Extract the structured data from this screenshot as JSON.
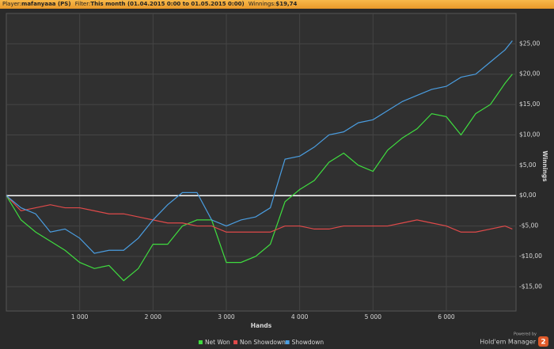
{
  "header": {
    "player_label": "Player:",
    "player": "mafanyaaa (PS)",
    "filter_label": "Filter:",
    "filter": "This month (01.04.2015 0:00 to 01.05.2015 0:00)",
    "winnings_label": "Winnings:",
    "winnings": "$19,74"
  },
  "chart_data": {
    "type": "line",
    "xlabel": "Hands",
    "ylabel": "Winnings",
    "x": [
      0,
      200,
      400,
      600,
      800,
      1000,
      1200,
      1400,
      1600,
      1800,
      2000,
      2200,
      2400,
      2600,
      2800,
      3000,
      3200,
      3400,
      3600,
      3800,
      4000,
      4200,
      4400,
      4600,
      4800,
      5000,
      5200,
      5400,
      5600,
      5800,
      6000,
      6200,
      6400,
      6600,
      6800,
      6900
    ],
    "series": [
      {
        "name": "Net Won",
        "color": "#3fdc3f",
        "values": [
          0,
          -4,
          -6,
          -7.5,
          -9,
          -11,
          -12,
          -11.5,
          -14,
          -12,
          -8,
          -8,
          -5,
          -4,
          -4,
          -11,
          -11,
          -10,
          -8,
          -1,
          1,
          2.5,
          5.5,
          7,
          5,
          4,
          7.5,
          9.5,
          11,
          13.5,
          13,
          10,
          13.5,
          15,
          18.5,
          20
        ]
      },
      {
        "name": "Non Showdown",
        "color": "#e04a4a",
        "values": [
          0,
          -2.5,
          -2,
          -1.5,
          -2,
          -2,
          -2.5,
          -3,
          -3,
          -3.5,
          -4,
          -4.5,
          -4.5,
          -5,
          -5,
          -6,
          -6,
          -6,
          -6,
          -5,
          -5,
          -5.5,
          -5.5,
          -5,
          -5,
          -5,
          -5,
          -4.5,
          -4,
          -4.5,
          -5,
          -6,
          -6,
          -5.5,
          -5,
          -5.5
        ]
      },
      {
        "name": "Showdown",
        "color": "#4a9de0",
        "values": [
          0,
          -2,
          -3,
          -6,
          -5.5,
          -7,
          -9.5,
          -9,
          -9,
          -7,
          -4,
          -1.5,
          0.5,
          0.5,
          -4,
          -5,
          -4,
          -3.5,
          -2,
          6,
          6.5,
          8,
          10,
          10.5,
          12,
          12.5,
          14,
          15.5,
          16.5,
          17.5,
          18,
          19.5,
          20,
          22,
          24,
          25.5
        ]
      }
    ],
    "xlim": [
      0,
      6950
    ],
    "xticks": [
      {
        "value": 1000,
        "label": "1 000"
      },
      {
        "value": 2000,
        "label": "2 000"
      },
      {
        "value": 3000,
        "label": "3 000"
      },
      {
        "value": 4000,
        "label": "4 000"
      },
      {
        "value": 5000,
        "label": "5 000"
      },
      {
        "value": 6000,
        "label": "6 000"
      }
    ],
    "ylim": [
      -19,
      30
    ],
    "yticks": [
      {
        "value": -15,
        "label": "-$15,00"
      },
      {
        "value": -10,
        "label": "-$10,00"
      },
      {
        "value": -5,
        "label": "-$5,00"
      },
      {
        "value": 0,
        "label": "$0,00"
      },
      {
        "value": 5,
        "label": "$5,00"
      },
      {
        "value": 10,
        "label": "$10,00"
      },
      {
        "value": 15,
        "label": "$15,00"
      },
      {
        "value": 20,
        "label": "$20,00"
      },
      {
        "value": 25,
        "label": "$25,00"
      }
    ],
    "grid": true,
    "legend": "bottom"
  },
  "footer": {
    "powered_by": "Powered by",
    "brand": "Hold'em Manager",
    "version": "2"
  }
}
